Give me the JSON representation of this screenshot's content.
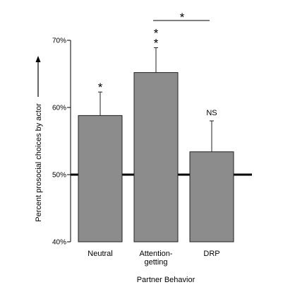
{
  "chart_data": {
    "type": "bar",
    "categories": [
      "Neutral",
      "Attention-getting",
      "DRP"
    ],
    "category_lines": [
      [
        "Neutral"
      ],
      [
        "Attention-",
        "getting"
      ],
      [
        "DRP"
      ]
    ],
    "values": [
      58.8,
      65.2,
      53.4
    ],
    "error_upper": [
      62.3,
      68.9,
      58.0
    ],
    "ylim": [
      40,
      70
    ],
    "yticks": [
      40,
      50,
      60,
      70
    ],
    "ytick_labels": [
      "40%",
      "50%",
      "60%",
      "70%"
    ],
    "reference_line": 50,
    "xlabel": "Partner Behavior",
    "ylabel": "Percent prosocial choices by actor",
    "significance": [
      "*",
      "**",
      "NS"
    ],
    "comparison": {
      "between": [
        "Attention-getting",
        "DRP"
      ],
      "label": "*"
    },
    "colors": {
      "bar": "#8c8c8c",
      "bar_outline": "#222222",
      "reference": "#000000"
    }
  }
}
